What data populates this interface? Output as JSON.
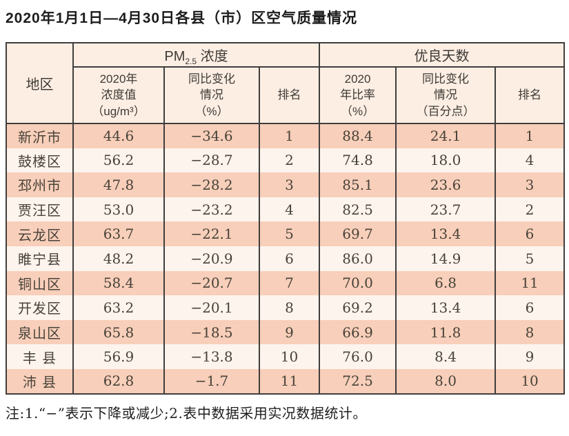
{
  "title": "2020年1月1日—4月30日各县（市）区空气质量情况",
  "colors": {
    "row_salmon": "#f8cfba",
    "row_cream": "#fdf4ed",
    "header_bg": "#fdeee3",
    "border": "#3f3d3c",
    "text": "#474239"
  },
  "table": {
    "header": {
      "region": "地区",
      "pm_group": {
        "prefix": "PM",
        "sub": "2.5",
        "suffix": " 浓度"
      },
      "good_days_group": "优良天数",
      "pm_value": "2020年\n浓度值\n（ug/m³）",
      "pm_change": "同比变化\n情况\n（%）",
      "pm_rank": "排名",
      "gd_ratio": "2020\n年比率\n（%）",
      "gd_change": "同比变化\n情况\n（百分点）",
      "gd_rank": "排名"
    },
    "rows": [
      {
        "region": "新沂市",
        "pm_value": "44.6",
        "pm_change": "−34.6",
        "pm_rank": "1",
        "gd_ratio": "88.4",
        "gd_change": "24.1",
        "gd_rank": "1"
      },
      {
        "region": "鼓楼区",
        "pm_value": "56.2",
        "pm_change": "−28.7",
        "pm_rank": "2",
        "gd_ratio": "74.8",
        "gd_change": "18.0",
        "gd_rank": "4"
      },
      {
        "region": "邳州市",
        "pm_value": "47.8",
        "pm_change": "−28.2",
        "pm_rank": "3",
        "gd_ratio": "85.1",
        "gd_change": "23.6",
        "gd_rank": "3"
      },
      {
        "region": "贾汪区",
        "pm_value": "53.0",
        "pm_change": "−23.2",
        "pm_rank": "4",
        "gd_ratio": "82.5",
        "gd_change": "23.7",
        "gd_rank": "2"
      },
      {
        "region": "云龙区",
        "pm_value": "63.7",
        "pm_change": "−22.1",
        "pm_rank": "5",
        "gd_ratio": "69.7",
        "gd_change": "13.4",
        "gd_rank": "6"
      },
      {
        "region": "睢宁县",
        "pm_value": "48.2",
        "pm_change": "−20.9",
        "pm_rank": "6",
        "gd_ratio": "86.0",
        "gd_change": "14.9",
        "gd_rank": "5"
      },
      {
        "region": "铜山区",
        "pm_value": "58.4",
        "pm_change": "−20.7",
        "pm_rank": "7",
        "gd_ratio": "70.0",
        "gd_change": "6.8",
        "gd_rank": "11"
      },
      {
        "region": "开发区",
        "pm_value": "63.2",
        "pm_change": "−20.1",
        "pm_rank": "8",
        "gd_ratio": "69.2",
        "gd_change": "13.4",
        "gd_rank": "6"
      },
      {
        "region": "泉山区",
        "pm_value": "65.8",
        "pm_change": "−18.5",
        "pm_rank": "9",
        "gd_ratio": "66.9",
        "gd_change": "11.8",
        "gd_rank": "8"
      },
      {
        "region": "丰 县",
        "pm_value": "56.9",
        "pm_change": "−13.8",
        "pm_rank": "10",
        "gd_ratio": "76.0",
        "gd_change": "8.4",
        "gd_rank": "9"
      },
      {
        "region": "沛 县",
        "pm_value": "62.8",
        "pm_change": "−1.7",
        "pm_rank": "11",
        "gd_ratio": "72.5",
        "gd_change": "8.0",
        "gd_rank": "10"
      }
    ]
  },
  "footnote": "注:1.“−”表示下降或减少;2.表中数据采用实况数据统计。"
}
